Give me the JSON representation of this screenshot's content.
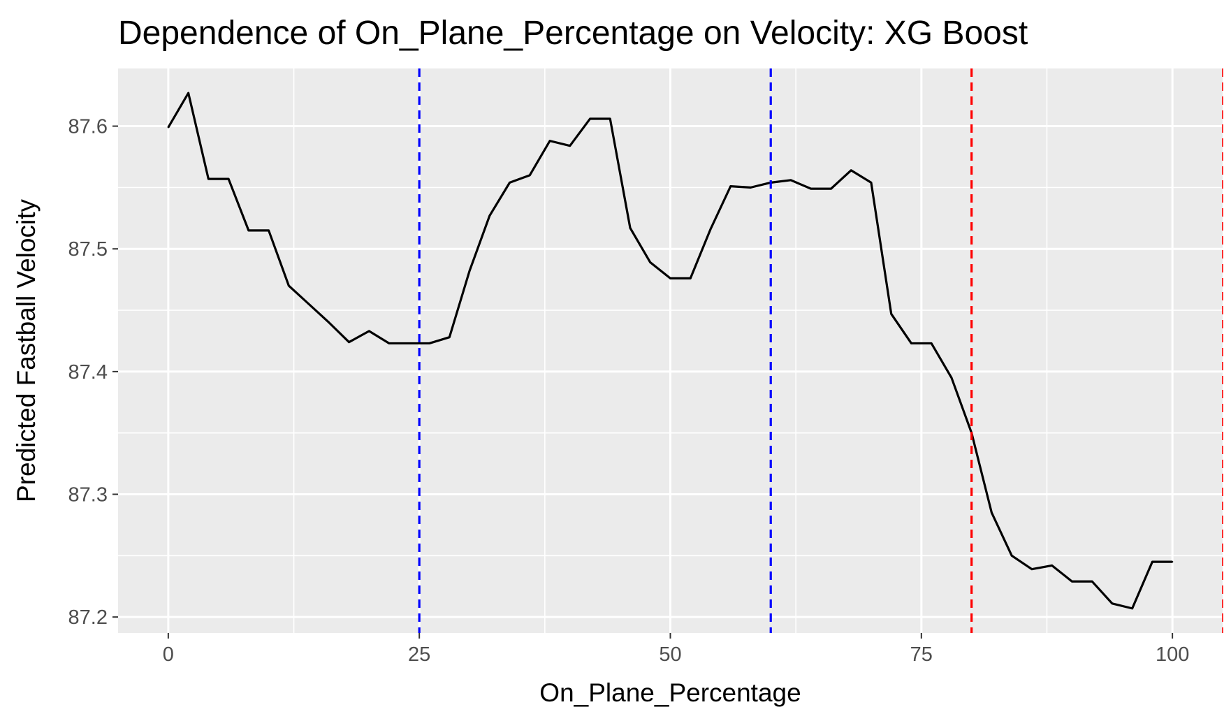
{
  "chart_data": {
    "type": "line",
    "title": "Dependence of On_Plane_Percentage on Velocity: XG Boost",
    "xlabel": "On_Plane_Percentage",
    "ylabel": "Predicted Fastball Velocity",
    "xlim": [
      -5,
      105
    ],
    "ylim": [
      87.187,
      87.647
    ],
    "x_ticks": [
      0,
      25,
      50,
      75,
      100
    ],
    "x_tick_labels": [
      "0",
      "25",
      "50",
      "75",
      "100"
    ],
    "y_ticks": [
      87.2,
      87.3,
      87.4,
      87.5,
      87.6
    ],
    "y_tick_labels": [
      "87.2",
      "87.3",
      "87.4",
      "87.5",
      "87.6"
    ],
    "grid": true,
    "background_color": "#ebebeb",
    "series": [
      {
        "color": "#000000",
        "x": [
          0,
          2,
          4,
          6,
          8,
          10,
          12,
          14,
          16,
          18,
          20,
          22,
          24,
          26,
          28,
          30,
          32,
          34,
          36,
          38,
          40,
          42,
          44,
          46,
          48,
          50,
          52,
          54,
          56,
          58,
          60,
          62,
          64,
          66,
          68,
          70,
          72,
          74,
          76,
          78,
          80,
          82,
          84,
          86,
          88,
          90,
          92,
          94,
          96,
          98,
          100
        ],
        "y": [
          87.599,
          87.627,
          87.557,
          87.557,
          87.515,
          87.515,
          87.47,
          87.455,
          87.44,
          87.424,
          87.433,
          87.423,
          87.423,
          87.423,
          87.428,
          87.482,
          87.527,
          87.554,
          87.56,
          87.588,
          87.584,
          87.606,
          87.606,
          87.517,
          87.489,
          87.476,
          87.476,
          87.516,
          87.551,
          87.55,
          87.554,
          87.556,
          87.549,
          87.549,
          87.564,
          87.554,
          87.447,
          87.423,
          87.423,
          87.395,
          87.35,
          87.285,
          87.25,
          87.239,
          87.242,
          87.229,
          87.229,
          87.211,
          87.207,
          87.245,
          87.245
        ]
      }
    ],
    "reference_lines": [
      {
        "x": 25,
        "color": "#0000ff",
        "style": "dashed"
      },
      {
        "x": 60,
        "color": "#0000ff",
        "style": "dashed"
      },
      {
        "x": 80,
        "color": "#ff0000",
        "style": "dashed"
      },
      {
        "x": 105,
        "color": "#ff0000",
        "style": "dashed"
      }
    ]
  }
}
